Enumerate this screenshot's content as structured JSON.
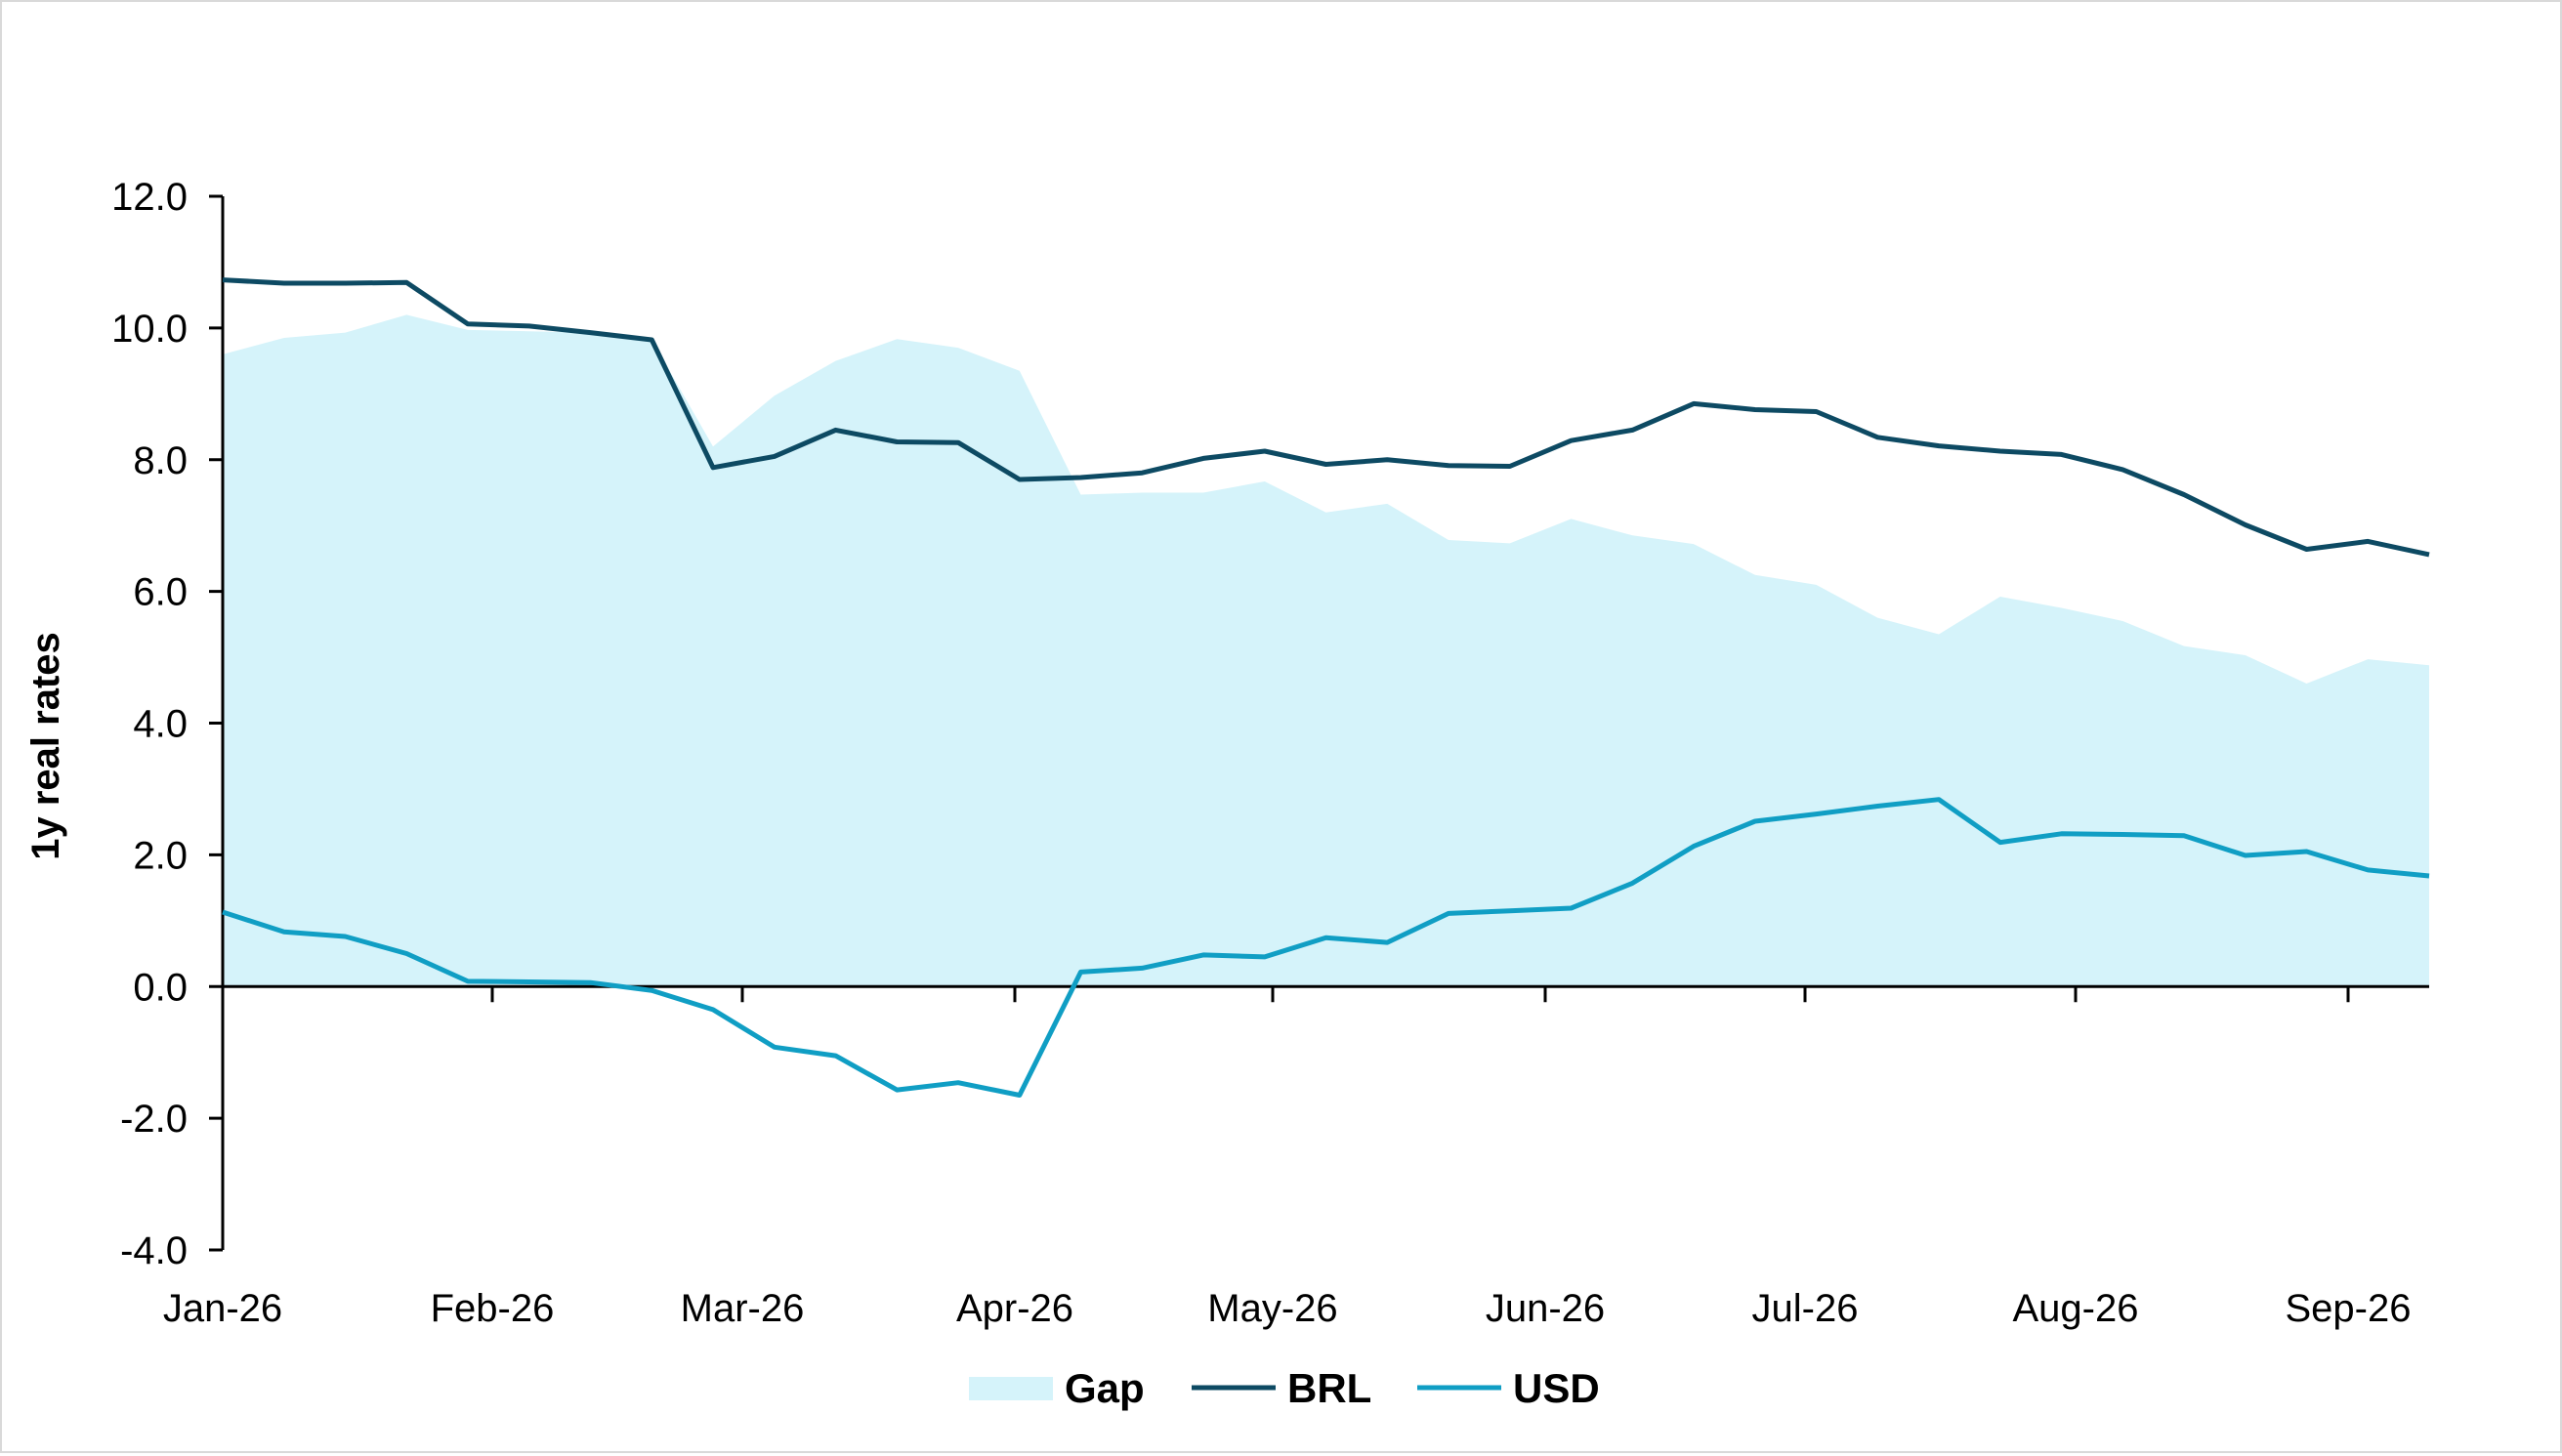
{
  "chart_data": {
    "type": "line",
    "title": "",
    "xlabel": "",
    "ylabel": "1y real rates",
    "ylim": [
      -4,
      12
    ],
    "ytick_values": [
      12,
      10,
      8,
      6,
      4,
      2,
      0,
      -2,
      -4
    ],
    "ytick_labels": [
      "12.0",
      "10.0",
      "8.0",
      "6.0",
      "4.0",
      "2.0",
      "0.0",
      "-2.0",
      "-4.0"
    ],
    "xtick_labels": [
      "Jan-26",
      "Feb-26",
      "Mar-26",
      "Apr-26",
      "May-26",
      "Jun-26",
      "Jul-26",
      "Aug-26",
      "Sep-26"
    ],
    "legend_position": "bottom",
    "grid": false,
    "series": [
      {
        "name": "Gap",
        "kind": "area",
        "color": "#d5f3fa",
        "values": [
          9.6,
          9.85,
          9.93,
          10.2,
          9.97,
          9.95,
          9.93,
          9.82,
          8.2,
          8.97,
          9.5,
          9.83,
          9.7,
          9.35,
          7.47,
          7.5,
          7.5,
          7.67,
          7.2,
          7.33,
          6.78,
          6.73,
          7.1,
          6.85,
          6.72,
          6.25,
          6.1,
          5.6,
          5.35,
          5.92,
          5.75,
          5.55,
          5.17,
          5.03,
          4.6,
          4.97,
          4.88
        ]
      },
      {
        "name": "BRL",
        "kind": "line",
        "color": "#0d4a63",
        "values": [
          10.73,
          10.68,
          10.68,
          10.69,
          10.06,
          10.03,
          9.93,
          9.82,
          7.88,
          8.05,
          8.45,
          8.27,
          8.26,
          7.7,
          7.73,
          7.8,
          8.02,
          8.13,
          7.93,
          8.0,
          7.91,
          7.9,
          8.29,
          8.45,
          8.85,
          8.76,
          8.73,
          8.34,
          8.21,
          8.13,
          8.08,
          7.85,
          7.47,
          7.01,
          6.64,
          6.76,
          6.56
        ]
      },
      {
        "name": "USD",
        "kind": "line",
        "color": "#109ec4",
        "values": [
          1.13,
          0.83,
          0.76,
          0.5,
          0.08,
          0.07,
          0.06,
          -0.06,
          -0.35,
          -0.92,
          -1.05,
          -1.57,
          -1.46,
          -1.65,
          0.22,
          0.28,
          0.48,
          0.45,
          0.74,
          0.67,
          1.11,
          1.15,
          1.19,
          1.57,
          2.13,
          2.51,
          2.62,
          2.74,
          2.84,
          2.19,
          2.32,
          2.31,
          2.29,
          1.99,
          2.05,
          1.77,
          1.68
        ]
      }
    ]
  }
}
